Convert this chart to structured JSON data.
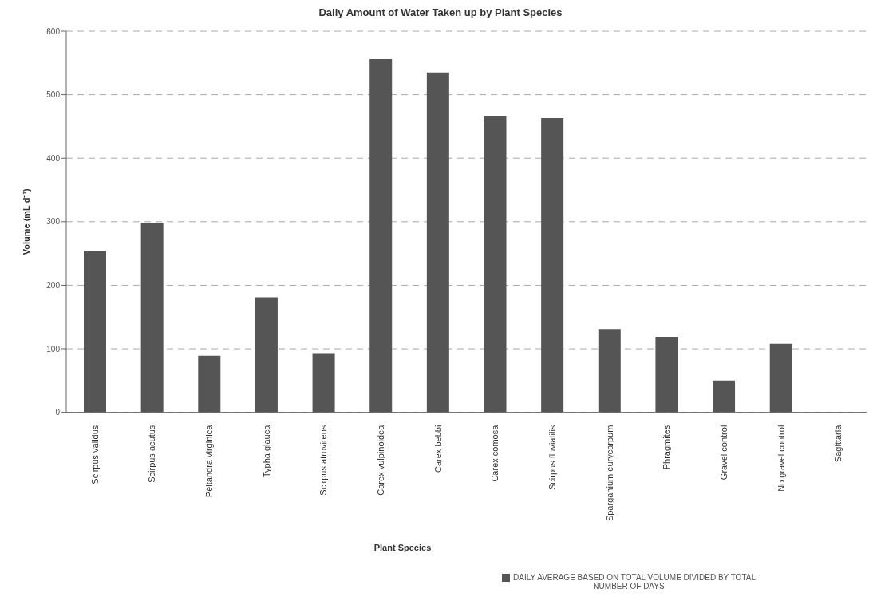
{
  "chart_data": {
    "type": "bar",
    "title": "Daily Amount of Water Taken up by Plant Species",
    "xlabel": "Plant Species",
    "ylabel": "Volume (mL d⁻¹)",
    "categories": [
      "Scirpus validus",
      "Scirpus acutus",
      "Peltandra virginica",
      "Typha glauca",
      "Scirpus atrovirens",
      "Carex vulpinoidea",
      "Carex bebbi",
      "Carex comosa",
      "Scirpus fluviatilis",
      "Sparganium eurycarpum",
      "Phragmites",
      "Gravel control",
      "No gravel control",
      "Sagittaria"
    ],
    "series": [
      {
        "name": "DAILY AVERAGE BASED ON TOTAL VOLUME DIVIDED BY TOTAL NUMBER OF DAYS",
        "color": "#555555",
        "values": [
          254,
          298,
          89,
          181,
          93,
          556,
          535,
          467,
          463,
          131,
          119,
          50,
          108,
          0
        ]
      }
    ],
    "ylim": [
      0,
      600
    ],
    "yticks": [
      0,
      100,
      200,
      300,
      400,
      500,
      600
    ],
    "grid": "y",
    "legend": "bottom"
  }
}
